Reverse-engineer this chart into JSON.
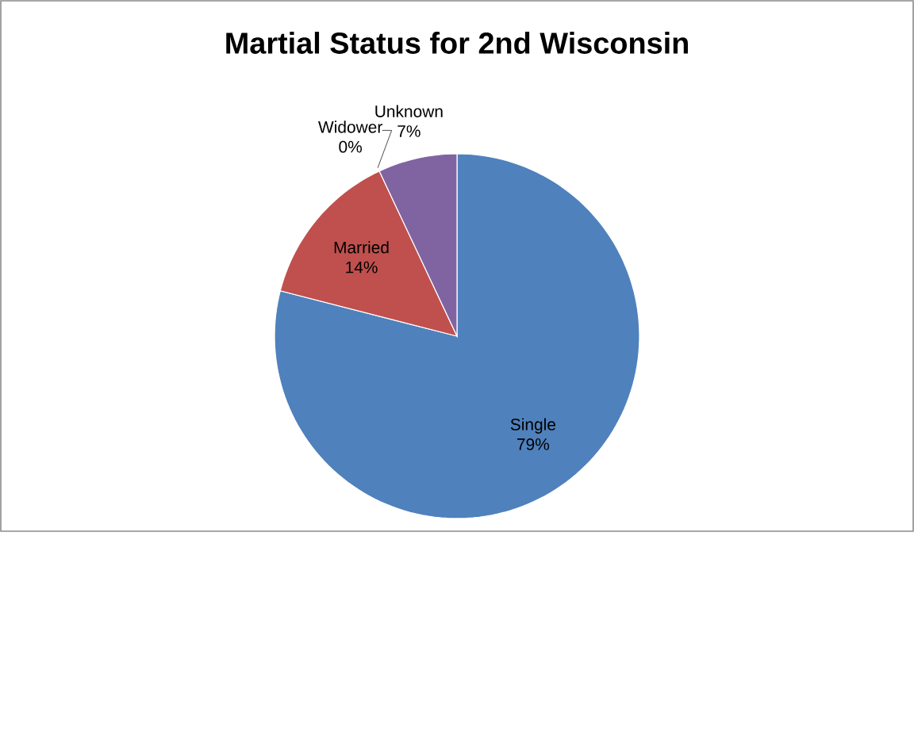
{
  "chart_data": {
    "type": "pie",
    "title": "Martial Status for 2nd Wisconsin",
    "categories": [
      "Single",
      "Married",
      "Widower",
      "Unknown"
    ],
    "values": [
      79,
      14,
      0,
      7
    ],
    "colors": [
      "#4f81bd",
      "#c0504d",
      "#9bbb59",
      "#8064a2"
    ],
    "value_labels": [
      "79%",
      "14%",
      "0%",
      "7%"
    ]
  }
}
